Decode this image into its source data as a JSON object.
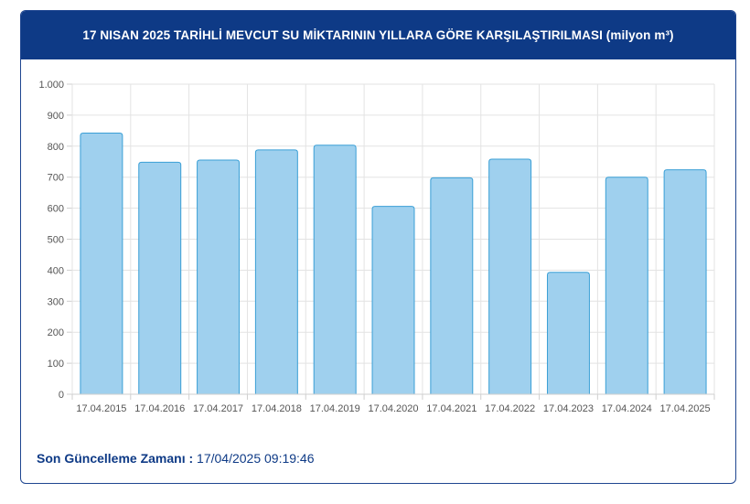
{
  "header": {
    "title": "17 NISAN 2025 TARİHLİ MEVCUT SU MİKTARININ YILLARA GÖRE KARŞILAŞTIRILMASI (milyon m³)"
  },
  "footer": {
    "label": "Son Güncelleme Zamanı :",
    "value": "17/04/2025 09:19:46"
  },
  "colors": {
    "header_bg": "#0e3a86",
    "bar_fill": "#9fd0ee",
    "bar_stroke": "#3a9fd6",
    "grid": "#e3e3e3"
  },
  "chart_data": {
    "type": "bar",
    "title": "17 NISAN 2025 TARİHLİ MEVCUT SU MİKTARININ YILLARA GÖRE KARŞILAŞTIRILMASI (milyon m³)",
    "xlabel": "",
    "ylabel": "",
    "categories": [
      "17.04.2015",
      "17.04.2016",
      "17.04.2017",
      "17.04.2018",
      "17.04.2019",
      "17.04.2020",
      "17.04.2021",
      "17.04.2022",
      "17.04.2023",
      "17.04.2024",
      "17.04.2025"
    ],
    "values": [
      842,
      748,
      755,
      788,
      803,
      606,
      698,
      758,
      393,
      700,
      724
    ],
    "ylim": [
      0,
      1000
    ],
    "yticks": [
      0,
      100,
      200,
      300,
      400,
      500,
      600,
      700,
      800,
      900,
      1000
    ],
    "ytick_labels": [
      "0",
      "100",
      "200",
      "300",
      "400",
      "500",
      "600",
      "700",
      "800",
      "900",
      "1.000"
    ],
    "grid": true,
    "legend": "none"
  }
}
